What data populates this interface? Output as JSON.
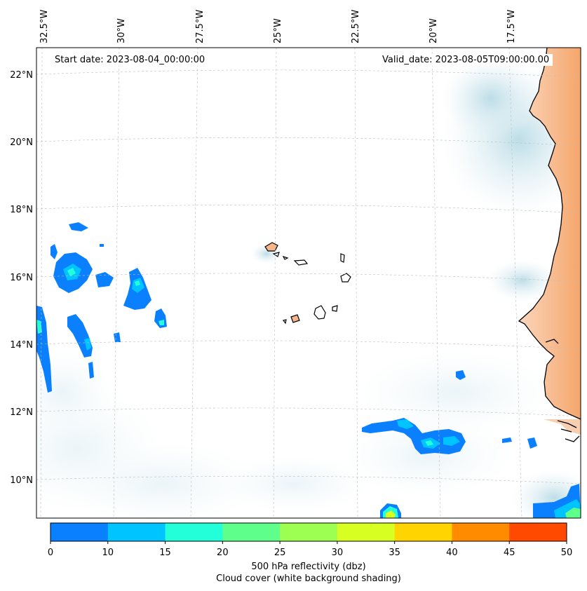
{
  "map": {
    "start_date": "Start date: 2023-08-04_00:00:00",
    "valid_date": "Valid_date: 2023-08-05T09:00:00.00",
    "lon_labels": [
      "32.5°W",
      "30°W",
      "27.5°W",
      "25°W",
      "22.5°W",
      "20°W",
      "17.5°W"
    ],
    "lat_labels": [
      "22°N",
      "20°N",
      "18°N",
      "16°N",
      "14°N",
      "12°N",
      "10°N"
    ],
    "land_color": "#f6b58a",
    "cloud_color": "#cfe5ee"
  },
  "colorbar": {
    "ticks": [
      "0",
      "10",
      "15",
      "20",
      "25",
      "30",
      "35",
      "40",
      "45",
      "50"
    ],
    "colors": [
      "#0a80ff",
      "#00c4ff",
      "#22ffd9",
      "#5fff8b",
      "#9cff52",
      "#d8ff22",
      "#ffd400",
      "#ff8c00",
      "#ff4a00"
    ],
    "label_line1": "500 hPa reflectivity (dbz)",
    "label_line2": "Cloud cover (white background shading)"
  }
}
